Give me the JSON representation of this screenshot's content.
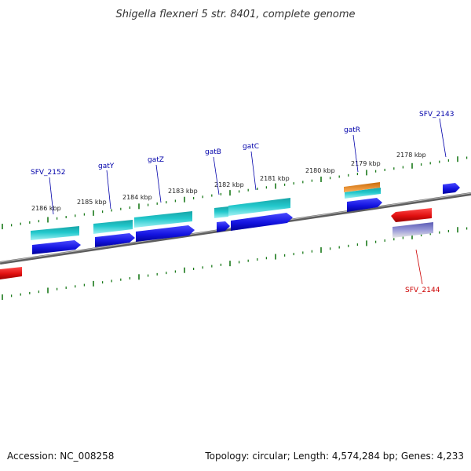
{
  "map": {
    "title": "Shigella flexneri 5 str. 8401, complete genome",
    "accession": "Accession: NC_008258",
    "summary": "Topology: circular; Length: 4,574,284 bp; Genes: 4,233"
  },
  "colors": {
    "backbone": "#777777",
    "tick": "#1a7a1a",
    "forward_cds": "#1414e0",
    "cds_cyan": "#22c8cc",
    "cds_orange": "#f08c14",
    "reverse_cds": "#e01010",
    "reverse_lavender": "#8484cc",
    "label_blue": "#0000aa",
    "label_red": "#cc0000"
  },
  "scale": {
    "labels": [
      "2186 kbp",
      "2185 kbp",
      "2184 kbp",
      "2183 kbp",
      "2182 kbp",
      "2181 kbp",
      "2180 kbp",
      "2179 kbp",
      "2178 kbp"
    ]
  },
  "genes": [
    {
      "label": "SFV_2152",
      "strand": "+"
    },
    {
      "label": "gatY",
      "strand": "+"
    },
    {
      "label": "gatZ",
      "strand": "+"
    },
    {
      "label": "gatB",
      "strand": "+"
    },
    {
      "label": "gatC",
      "strand": "+"
    },
    {
      "label": "gatR",
      "strand": "+"
    },
    {
      "label": "SFV_2143",
      "strand": "+"
    },
    {
      "label": "SFV_2144",
      "strand": "-"
    }
  ]
}
